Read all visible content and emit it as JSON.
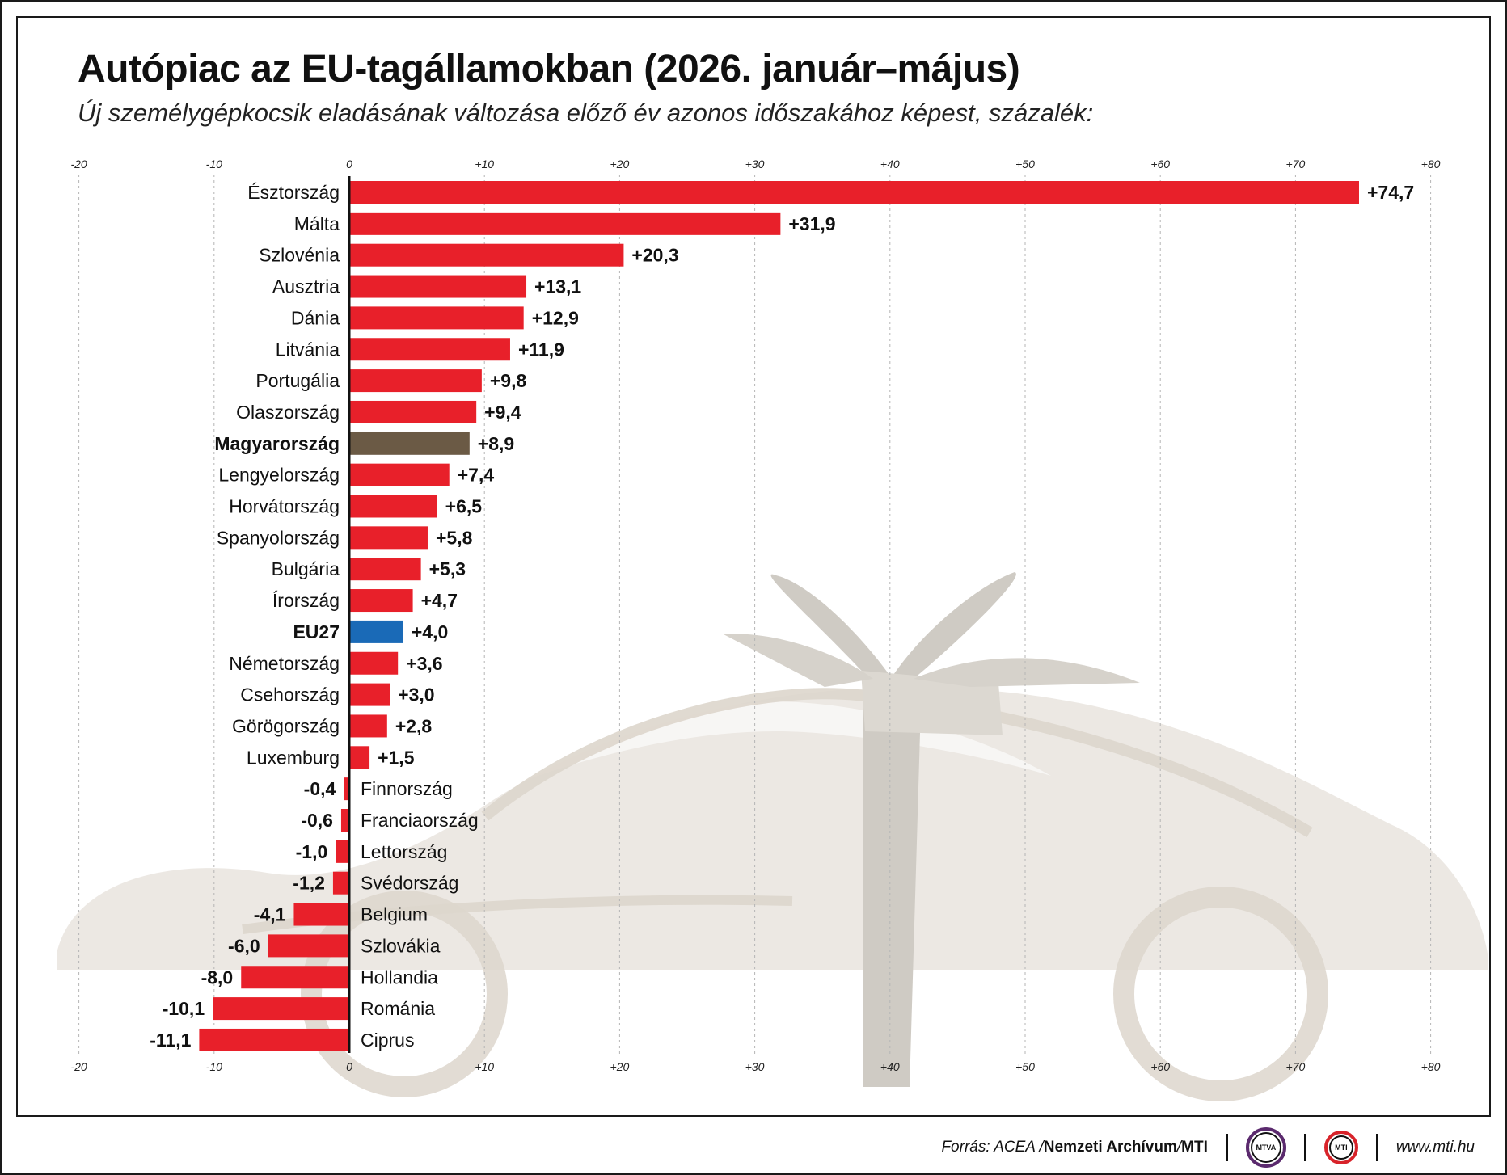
{
  "title": "Autópiac az EU-tagállamokban (2026. január–május)",
  "subtitle": "Új személygépkocsik eladásának változása előző év azonos időszakához képest, százalék:",
  "colors": {
    "bar": "#e8202a",
    "highlight_hungary": "#6b5a45",
    "highlight_eu": "#1a6ab7",
    "gridline": "#b5b5b5",
    "background_art": "#ddd6cc"
  },
  "chart_data": {
    "type": "bar",
    "orientation": "horizontal",
    "xlim": [
      -20,
      80
    ],
    "tick_values": [
      -20,
      -10,
      0,
      10,
      20,
      30,
      40,
      50,
      60,
      70,
      80
    ],
    "tick_labels": [
      "-20",
      "-10",
      "0",
      "+10",
      "+20",
      "+30",
      "+40",
      "+50",
      "+60",
      "+70",
      "+80"
    ],
    "grid": true,
    "categories": [
      "Észtország",
      "Málta",
      "Szlovénia",
      "Ausztria",
      "Dánia",
      "Litvánia",
      "Portugália",
      "Olaszország",
      "Magyarország",
      "Lengyelország",
      "Horvátország",
      "Spanyolország",
      "Bulgária",
      "Írország",
      "EU27",
      "Németország",
      "Csehország",
      "Görögország",
      "Luxemburg",
      "Finnország",
      "Franciaország",
      "Lettország",
      "Svédország",
      "Belgium",
      "Szlovákia",
      "Hollandia",
      "Románia",
      "Ciprus"
    ],
    "values": [
      74.7,
      31.9,
      20.3,
      13.1,
      12.9,
      11.9,
      9.8,
      9.4,
      8.9,
      7.4,
      6.5,
      5.8,
      5.3,
      4.7,
      4.0,
      3.6,
      3.0,
      2.8,
      1.5,
      -0.4,
      -0.6,
      -1.0,
      -1.2,
      -4.1,
      -6.0,
      -8.0,
      -10.1,
      -11.1
    ],
    "value_labels": [
      "+74,7",
      "+31,9",
      "+20,3",
      "+13,1",
      "+12,9",
      "+11,9",
      "+9,8",
      "+9,4",
      "+8,9",
      "+7,4",
      "+6,5",
      "+5,8",
      "+5,3",
      "+4,7",
      "+4,0",
      "+3,6",
      "+3,0",
      "+2,8",
      "+1,5",
      "-0,4",
      "-0,6",
      "-1,0",
      "-1,2",
      "-4,1",
      "-6,0",
      "-8,0",
      "-10,1",
      "-11,1"
    ],
    "highlighted": {
      "Magyarország": "highlight_hungary",
      "EU27": "highlight_eu"
    }
  },
  "footer": {
    "source_prefix": "Forrás: ACEA / ",
    "source_org": "Nemzeti Archívum",
    "source_mid": " / ",
    "source_mti": "MTI",
    "logo_mtva": "MTVA",
    "logo_mti": "MTI",
    "url": "www.mti.hu"
  }
}
